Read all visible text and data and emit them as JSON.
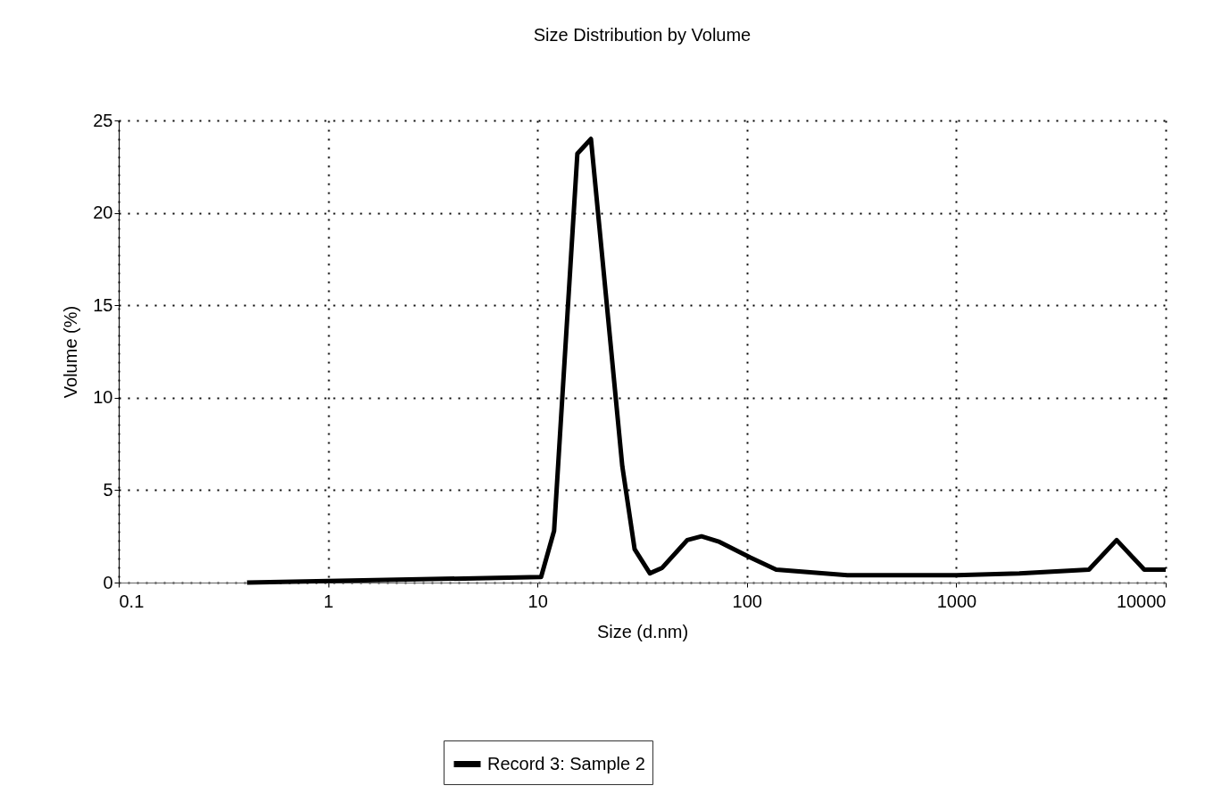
{
  "chart_data": {
    "type": "line",
    "title": "Size Distribution by Volume",
    "xlabel": "Size (d.nm)",
    "ylabel": "Volume (%)",
    "x": [
      0.41,
      10.4,
      12.0,
      15.5,
      18.0,
      25.4,
      29.1,
      34.4,
      39.4,
      51.9,
      60.7,
      74,
      104,
      138,
      302,
      1000,
      2000,
      4300,
      5830,
      7900,
      10000
    ],
    "series": [
      {
        "name": "Record 3: Sample 2",
        "color": "#000000",
        "values": [
          0,
          0.3,
          2.8,
          23.2,
          24.0,
          6.3,
          1.8,
          0.5,
          0.8,
          2.3,
          2.5,
          2.2,
          1.35,
          0.7,
          0.4,
          0.4,
          0.5,
          0.7,
          2.3,
          0.7,
          0.7
        ]
      }
    ],
    "xlim": [
      0.1,
      10000
    ],
    "xticks": [
      0.1,
      1,
      10,
      100,
      1000,
      10000
    ],
    "ylim": [
      0,
      25
    ],
    "yticks": [
      0,
      5,
      10,
      15,
      20,
      25
    ],
    "log": "x",
    "grid": true,
    "legend": "bottom",
    "line_style": "solid"
  }
}
